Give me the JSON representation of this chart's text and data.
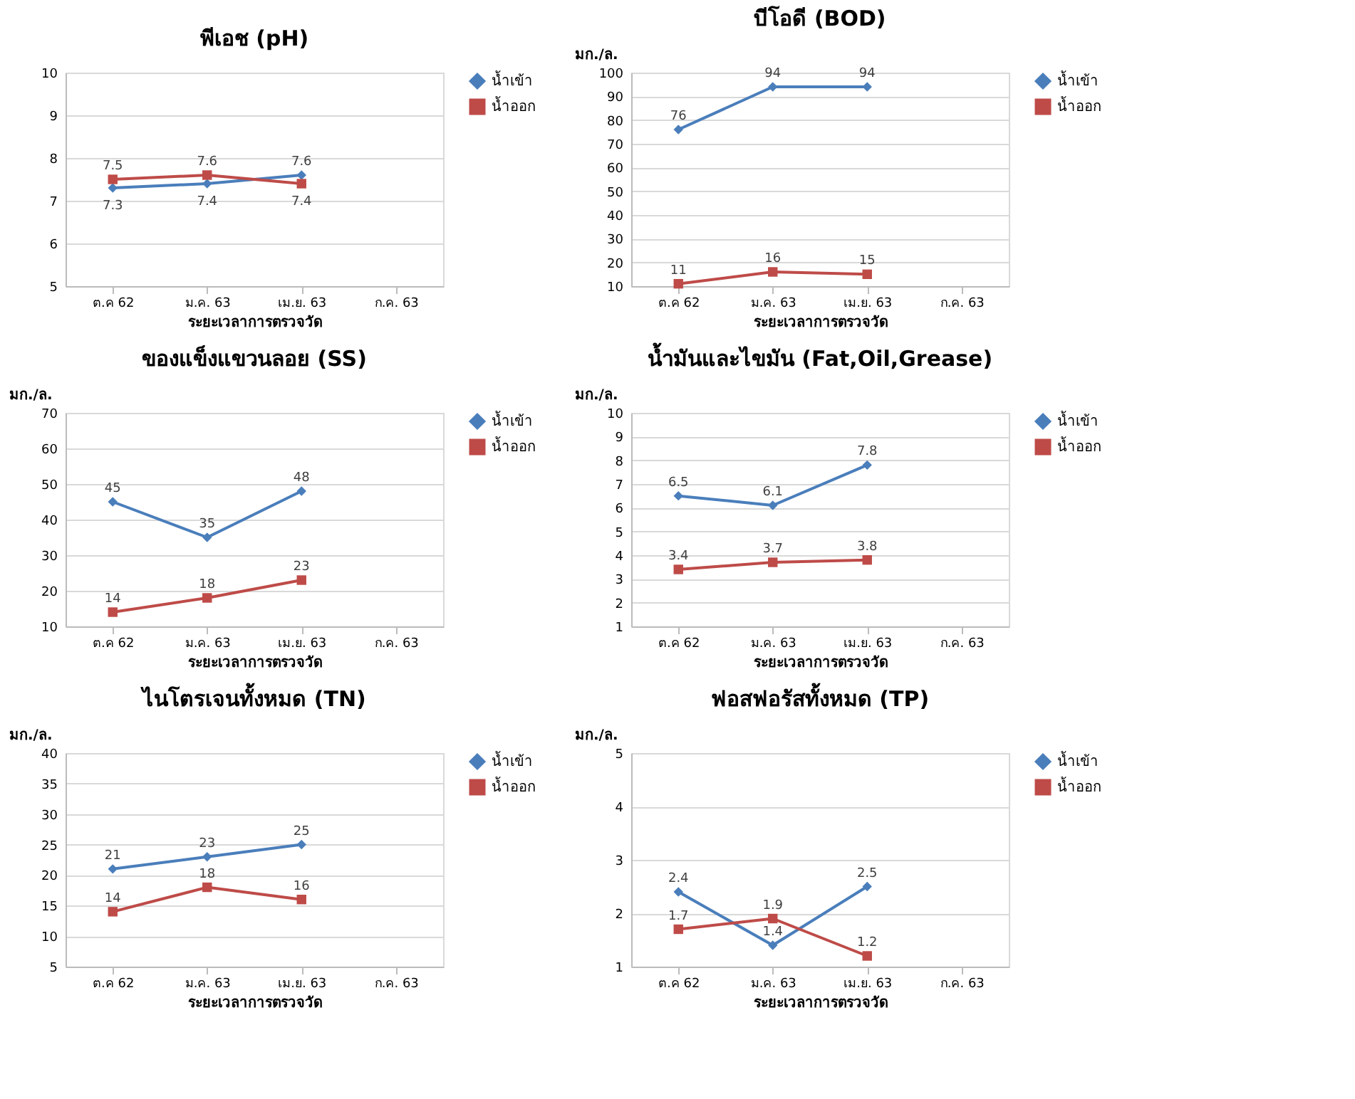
{
  "chart_data": [
    {
      "type": "line",
      "title": "พีเอช (pH)",
      "xlabel": "ระยะเวลาการตรวจวัด",
      "categories": [
        "ต.ค 62",
        "ม.ค. 63",
        "เม.ย. 63",
        "ก.ค. 63"
      ],
      "ylim": [
        5,
        10
      ],
      "yticks": [
        5,
        6,
        7,
        8,
        9,
        10
      ],
      "grid": "y",
      "line_style": "solid",
      "legend": "right",
      "data_labels": true,
      "series": [
        {
          "name": "น้ำเข้า",
          "color": "#4a7ebb",
          "marker": "diamond",
          "values": [
            7.3,
            7.4,
            7.6,
            null
          ]
        },
        {
          "name": "น้ำออก",
          "color": "#be4b48",
          "marker": "square",
          "values": [
            7.5,
            7.6,
            7.4,
            null
          ]
        }
      ]
    },
    {
      "type": "line",
      "title": "บีโอดี (BOD)",
      "ylabel": "มก./ล.",
      "xlabel": "ระยะเวลาการตรวจวัด",
      "categories": [
        "ต.ค 62",
        "ม.ค. 63",
        "เม.ย. 63",
        "ก.ค. 63"
      ],
      "ylim": [
        10,
        100
      ],
      "yticks": [
        10,
        20,
        30,
        40,
        50,
        60,
        70,
        80,
        90,
        100
      ],
      "grid": "y",
      "line_style": "solid",
      "legend": "right",
      "data_labels": true,
      "series": [
        {
          "name": "น้ำเข้า",
          "color": "#4a7ebb",
          "marker": "diamond",
          "values": [
            76,
            94,
            94,
            null
          ]
        },
        {
          "name": "น้ำออก",
          "color": "#be4b48",
          "marker": "square",
          "values": [
            11,
            16,
            15,
            null
          ]
        }
      ]
    },
    {
      "type": "line",
      "title": "ของแข็งแขวนลอย (SS)",
      "ylabel": "มก./ล.",
      "xlabel": "ระยะเวลาการตรวจวัด",
      "categories": [
        "ต.ค 62",
        "ม.ค. 63",
        "เม.ย. 63",
        "ก.ค. 63"
      ],
      "ylim": [
        10,
        70
      ],
      "yticks": [
        10,
        20,
        30,
        40,
        50,
        60,
        70
      ],
      "grid": "y",
      "line_style": "solid",
      "legend": "right",
      "data_labels": true,
      "series": [
        {
          "name": "น้ำเข้า",
          "color": "#4a7ebb",
          "marker": "diamond",
          "values": [
            45,
            35,
            48,
            null
          ]
        },
        {
          "name": "น้ำออก",
          "color": "#be4b48",
          "marker": "square",
          "values": [
            14,
            18,
            23,
            null
          ]
        }
      ]
    },
    {
      "type": "line",
      "title": "น้ำมันและไขมัน (Fat,Oil,Grease)",
      "ylabel": "มก./ล.",
      "xlabel": "ระยะเวลาการตรวจวัด",
      "categories": [
        "ต.ค 62",
        "ม.ค. 63",
        "เม.ย. 63",
        "ก.ค. 63"
      ],
      "ylim": [
        1,
        10
      ],
      "yticks": [
        1,
        2,
        3,
        4,
        5,
        6,
        7,
        8,
        9,
        10
      ],
      "grid": "y",
      "line_style": "solid",
      "legend": "right",
      "data_labels": true,
      "series": [
        {
          "name": "น้ำเข้า",
          "color": "#4a7ebb",
          "marker": "diamond",
          "values": [
            6.5,
            6.1,
            7.8,
            null
          ]
        },
        {
          "name": "น้ำออก",
          "color": "#be4b48",
          "marker": "square",
          "values": [
            3.4,
            3.7,
            3.8,
            null
          ]
        }
      ]
    },
    {
      "type": "line",
      "title": "ไนโตรเจนทั้งหมด (TN)",
      "ylabel": "มก./ล.",
      "xlabel": "ระยะเวลาการตรวจวัด",
      "categories": [
        "ต.ค 62",
        "ม.ค. 63",
        "เม.ย. 63",
        "ก.ค. 63"
      ],
      "ylim": [
        5,
        40
      ],
      "yticks": [
        5,
        10,
        15,
        20,
        25,
        30,
        35,
        40
      ],
      "grid": "y",
      "line_style": "solid",
      "legend": "right",
      "data_labels": true,
      "series": [
        {
          "name": "น้ำเข้า",
          "color": "#4a7ebb",
          "marker": "diamond",
          "values": [
            21,
            23,
            25,
            null
          ]
        },
        {
          "name": "น้ำออก",
          "color": "#be4b48",
          "marker": "square",
          "values": [
            14,
            18,
            16,
            null
          ]
        }
      ]
    },
    {
      "type": "line",
      "title": "ฟอสฟอรัสทั้งหมด (TP)",
      "ylabel": "มก./ล.",
      "xlabel": "ระยะเวลาการตรวจวัด",
      "categories": [
        "ต.ค 62",
        "ม.ค. 63",
        "เม.ย. 63",
        "ก.ค. 63"
      ],
      "ylim": [
        1,
        5
      ],
      "yticks": [
        1,
        2,
        3,
        4,
        5
      ],
      "grid": "y",
      "line_style": "solid",
      "legend": "right",
      "data_labels": true,
      "series": [
        {
          "name": "น้ำเข้า",
          "color": "#4a7ebb",
          "marker": "diamond",
          "values": [
            2.4,
            1.4,
            2.5,
            null
          ]
        },
        {
          "name": "น้ำออก",
          "color": "#be4b48",
          "marker": "square",
          "values": [
            1.7,
            1.9,
            1.2,
            null
          ]
        }
      ]
    }
  ]
}
